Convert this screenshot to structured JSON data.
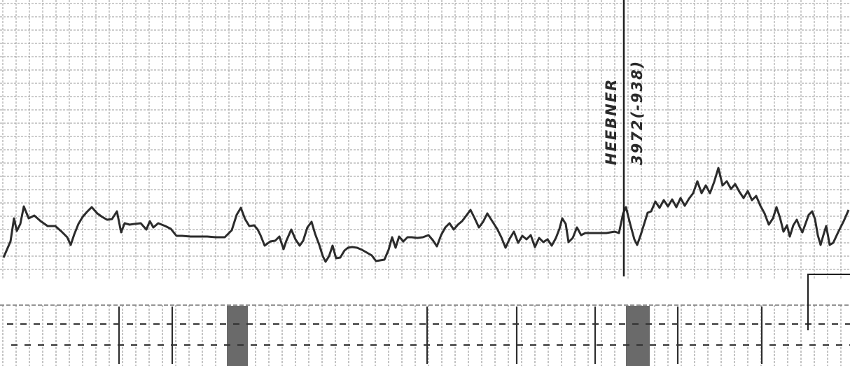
{
  "formation_pick": {
    "name": "HEEBNER",
    "depth": "3972(-938)"
  },
  "colors": {
    "paper": "#ffffff",
    "grid": "#9a9a9a",
    "trace": "#2b2b2b",
    "marker": "#1e1e1e",
    "strip_shading": "#6a6a6a",
    "strip_ticks": "#333333"
  },
  "lithology_strip": {
    "shaded_intervals": 2
  }
}
